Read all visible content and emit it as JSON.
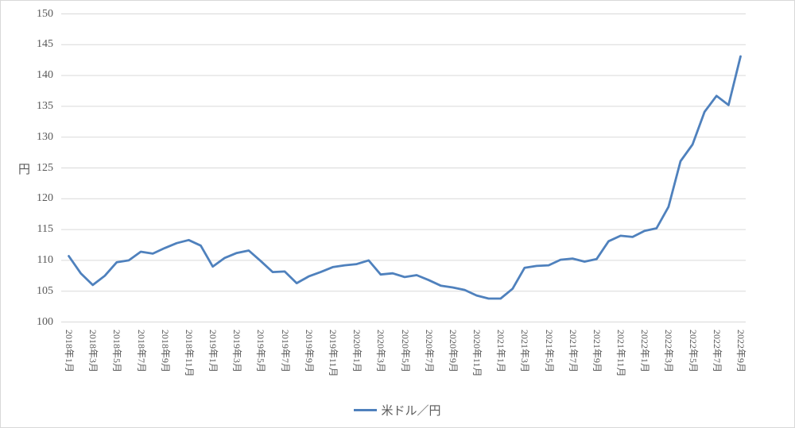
{
  "chart_data": {
    "type": "line",
    "title": "",
    "ylabel": "円",
    "xlabel": "",
    "grid": true,
    "legend_position": "bottom",
    "ylim": [
      100,
      150
    ],
    "y_ticks": [
      100,
      105,
      110,
      115,
      120,
      125,
      130,
      135,
      140,
      145,
      150
    ],
    "x_tick_step": 2,
    "x": [
      "2018年1月",
      "2018年2月",
      "2018年3月",
      "2018年4月",
      "2018年5月",
      "2018年6月",
      "2018年7月",
      "2018年8月",
      "2018年9月",
      "2018年10月",
      "2018年11月",
      "2018年12月",
      "2019年1月",
      "2019年2月",
      "2019年3月",
      "2019年4月",
      "2019年5月",
      "2019年6月",
      "2019年7月",
      "2019年8月",
      "2019年9月",
      "2019年10月",
      "2019年11月",
      "2019年12月",
      "2020年1月",
      "2020年2月",
      "2020年3月",
      "2020年4月",
      "2020年5月",
      "2020年6月",
      "2020年7月",
      "2020年8月",
      "2020年9月",
      "2020年10月",
      "2020年11月",
      "2020年12月",
      "2021年1月",
      "2021年2月",
      "2021年3月",
      "2021年4月",
      "2021年5月",
      "2021年6月",
      "2021年7月",
      "2021年8月",
      "2021年9月",
      "2021年10月",
      "2021年11月",
      "2021年12月",
      "2022年1月",
      "2022年2月",
      "2022年3月",
      "2022年4月",
      "2022年5月",
      "2022年6月",
      "2022年7月",
      "2022年8月",
      "2022年9月"
    ],
    "series": [
      {
        "name": "米ドル／円",
        "values": [
          110.7,
          107.9,
          106.0,
          107.5,
          109.7,
          110.0,
          111.4,
          111.1,
          112.0,
          112.8,
          113.3,
          112.4,
          109.0,
          110.4,
          111.2,
          111.6,
          109.9,
          108.1,
          108.2,
          106.3,
          107.4,
          108.1,
          108.9,
          109.2,
          109.4,
          110.0,
          107.7,
          107.9,
          107.3,
          107.6,
          106.8,
          105.9,
          105.6,
          105.2,
          104.3,
          103.8,
          103.8,
          105.4,
          108.8,
          109.1,
          109.2,
          110.1,
          110.3,
          109.8,
          110.2,
          113.1,
          114.0,
          113.8,
          114.8,
          115.2,
          118.7,
          126.1,
          128.8,
          134.1,
          136.7,
          135.2,
          143.1
        ]
      }
    ]
  },
  "colors": {
    "line": "#4F81BD",
    "gridline": "#D9D9D9",
    "axis_text": "#595959",
    "chart_border": "#D9D9D9",
    "background": "#FFFFFF"
  }
}
